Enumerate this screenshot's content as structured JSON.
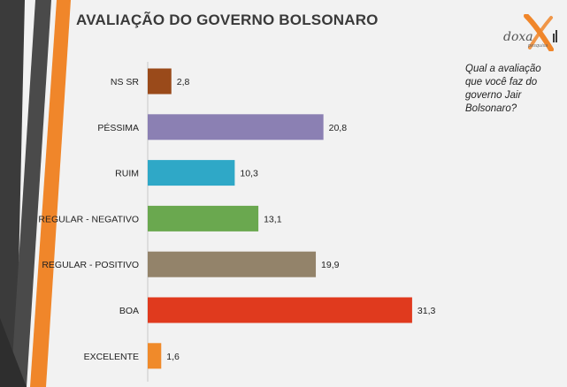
{
  "title": "AVALIAÇÃO DO GOVERNO BOLSONARO",
  "question": "Qual a avaliação que você faz do governo Jair Bolsonaro?",
  "logo": {
    "name": "doxa",
    "sub": "pesquisa",
    "icon": "doxa-x-logo-icon",
    "color": "#f0862a"
  },
  "colors": {
    "background": "#f2f2f2",
    "decor_dark": "#4a4a4a",
    "decor_orange": "#f0862a"
  },
  "chart_data": {
    "type": "bar",
    "orientation": "horizontal",
    "categories": [
      "NS SR",
      "PÉSSIMA",
      "RUIM",
      "REGULAR - NEGATIVO",
      "REGULAR - POSITIVO",
      "BOA",
      "EXCELENTE"
    ],
    "values": [
      2.8,
      20.8,
      10.3,
      13.1,
      19.9,
      31.3,
      1.6
    ],
    "value_labels": [
      "2,8",
      "20,8",
      "10,3",
      "13,1",
      "19,9",
      "31,3",
      "1,6"
    ],
    "colors": [
      "#9a4a1a",
      "#8b80b3",
      "#2fa8c7",
      "#6aa84f",
      "#93836a",
      "#e03a1e",
      "#f08a2a"
    ],
    "xlim": [
      0,
      35
    ],
    "grid": false,
    "legend": "none"
  }
}
